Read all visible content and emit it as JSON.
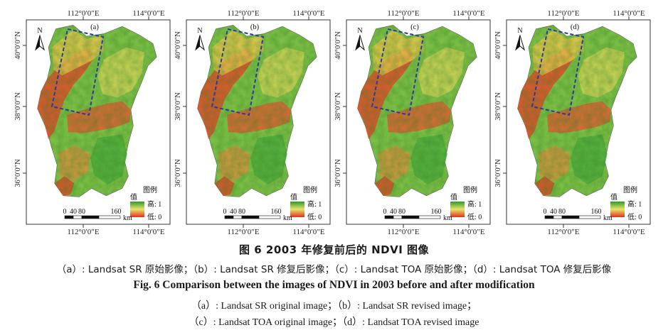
{
  "panels": [
    {
      "label": "(a)"
    },
    {
      "label": "(b)"
    },
    {
      "label": "(c)"
    },
    {
      "label": "(d)"
    }
  ],
  "map_labels": {
    "top_lon_left": "112°0′0″E",
    "top_lon_right": "114°0′0″E",
    "bottom_lon_left": "112°0′0″E",
    "bottom_lon_right": "114°0′0″E",
    "lat_40": "40°0′0″N",
    "lat_38": "38°0′0″N",
    "lat_36": "36°0′0″N",
    "north": "N",
    "legend_title": "图例",
    "legend_value": "值",
    "legend_high": "高: 1",
    "legend_low": "低: 0",
    "scale_ticks": [
      "0",
      "40",
      "80",
      "160"
    ],
    "scale_unit": "km"
  },
  "colors": {
    "high": "#3a9a2c",
    "mid": "#e8e06a",
    "low": "#e03a24",
    "roi_box": "#2d3a9c"
  },
  "caption": {
    "cn_title": "图 6    2003 年修复前后的 NDVI 图像",
    "cn_sub": "（a）: Landsat SR 原始影像；（b）: Landsat SR 修复后影像；（c）: Landsat TOA 原始影像；（d）: Landsat TOA 修复后影像",
    "en_title": "Fig. 6    Comparison between the images of NDVI in 2003 before and after modification",
    "en_sub1": "（a）: Landsat SR original image；（b）: Landsat SR revised image；",
    "en_sub2": "（c）: Landsat TOA original image；（d）: Landsat TOA revised image"
  }
}
